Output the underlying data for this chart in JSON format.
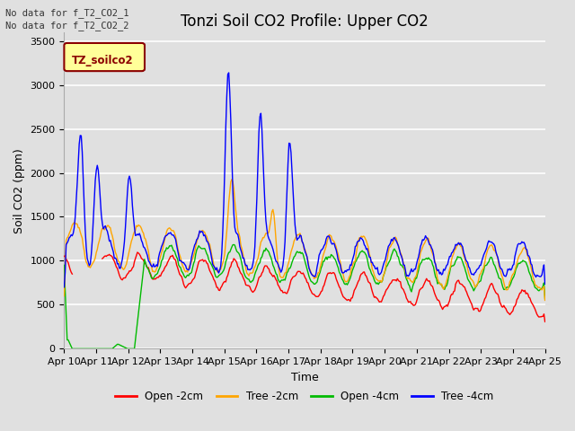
{
  "title": "Tonzi Soil CO2 Profile: Upper CO2",
  "ylabel": "Soil CO2 (ppm)",
  "xlabel": "Time",
  "annotations": [
    "No data for f_T2_CO2_1",
    "No data for f_T2_CO2_2"
  ],
  "legend_label": "TZ_soilco2",
  "series_labels": [
    "Open -2cm",
    "Tree -2cm",
    "Open -4cm",
    "Tree -4cm"
  ],
  "series_colors": [
    "#ff0000",
    "#ffa500",
    "#00bb00",
    "#0000ff"
  ],
  "ylim": [
    0,
    3600
  ],
  "yticks": [
    0,
    500,
    1000,
    1500,
    2000,
    2500,
    3000,
    3500
  ],
  "xticklabels": [
    "Apr 10",
    "Apr 11",
    "Apr 12",
    "Apr 13",
    "Apr 14",
    "Apr 15",
    "Apr 16",
    "Apr 17",
    "Apr 18",
    "Apr 19",
    "Apr 20",
    "Apr 21",
    "Apr 22",
    "Apr 23",
    "Apr 24",
    "Apr 25"
  ],
  "background_color": "#e0e0e0",
  "plot_bg_color": "#e0e0e0",
  "grid_color": "#ffffff",
  "title_fontsize": 12,
  "axis_fontsize": 9,
  "tick_fontsize": 8,
  "legend_box_facecolor": "#ffff99",
  "legend_text_color": "#8b0000",
  "legend_border_color": "#8b0000",
  "figsize": [
    6.4,
    4.8
  ],
  "dpi": 100
}
